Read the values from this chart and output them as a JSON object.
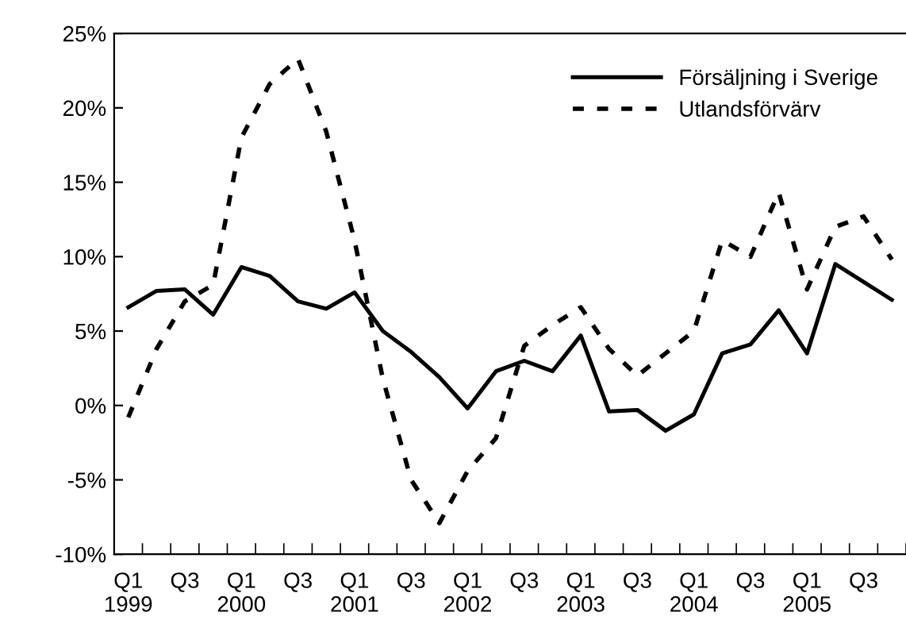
{
  "chart_data": {
    "type": "line",
    "categories": [
      "Q1\n1999",
      null,
      "Q3",
      null,
      "Q1\n2000",
      null,
      "Q3",
      null,
      "Q1\n2001",
      null,
      "Q3",
      null,
      "Q1\n2002",
      null,
      "Q3",
      null,
      "Q1\n2003",
      null,
      "Q3",
      null,
      "Q1\n2004",
      null,
      "Q3",
      null,
      "Q1\n2005",
      null,
      "Q3",
      null
    ],
    "series": [
      {
        "name": "Försäljning i Sverige",
        "color": "#000000",
        "line_style": "solid",
        "values": [
          6.6,
          7.7,
          7.8,
          6.1,
          9.3,
          8.7,
          7.0,
          6.5,
          7.6,
          5.0,
          3.6,
          1.9,
          -0.2,
          2.3,
          3.0,
          2.3,
          4.7,
          -0.4,
          -0.3,
          -1.7,
          -0.6,
          3.5,
          4.1,
          6.4,
          3.5,
          9.5,
          8.3,
          7.1
        ]
      },
      {
        "name": "Utlandsförvärv",
        "color": "#000000",
        "line_style": "dashed",
        "values": [
          -0.8,
          3.8,
          7.0,
          8.1,
          18.0,
          21.6,
          23.3,
          18.4,
          11.1,
          1.8,
          -5.0,
          -7.9,
          -4.4,
          -2.2,
          4.0,
          5.4,
          6.6,
          3.8,
          2.0,
          3.5,
          5.0,
          11.1,
          10.0,
          14.3,
          7.8,
          12.0,
          12.7,
          9.8
        ]
      }
    ],
    "ylim": [
      -10,
      25
    ],
    "yticks": [
      {
        "value": -10,
        "label": "-10%"
      },
      {
        "value": -5,
        "label": "-5%"
      },
      {
        "value": 0,
        "label": "0%"
      },
      {
        "value": 5,
        "label": "5%"
      },
      {
        "value": 10,
        "label": "10%"
      },
      {
        "value": 15,
        "label": "15%"
      },
      {
        "value": 20,
        "label": "20%"
      },
      {
        "value": 25,
        "label": "25%"
      }
    ],
    "legend": "top right",
    "grid": false,
    "marker": "none"
  }
}
